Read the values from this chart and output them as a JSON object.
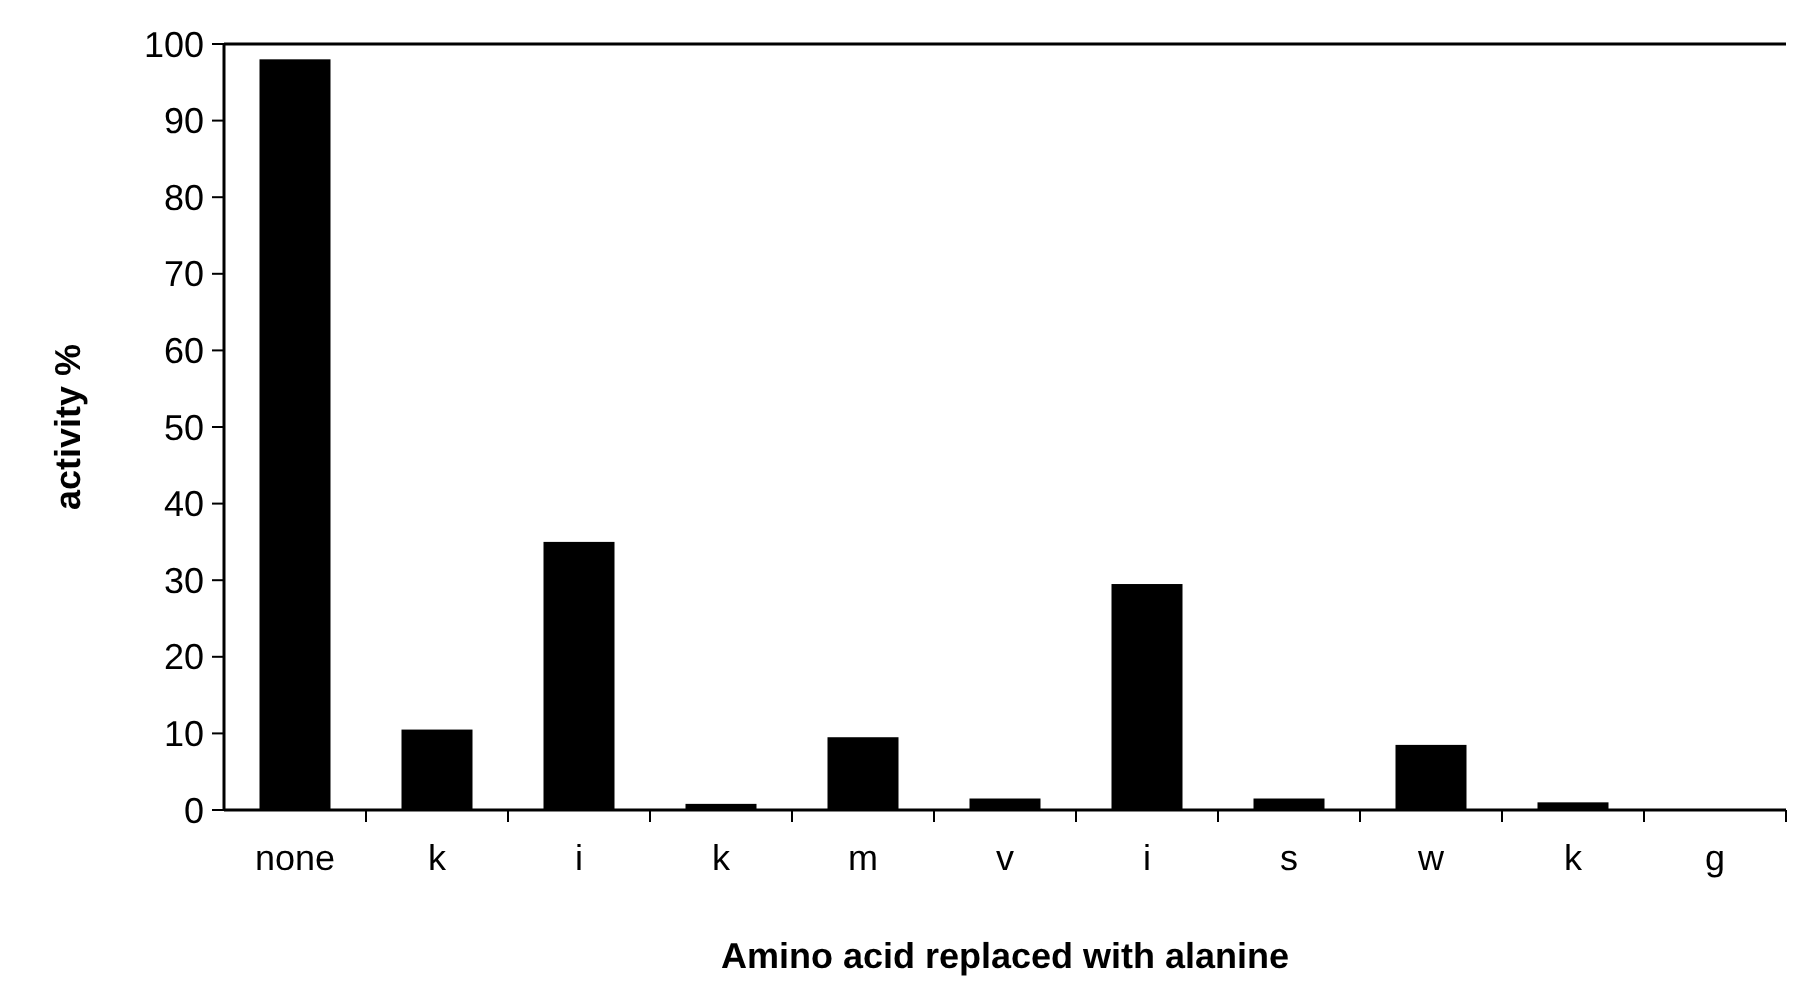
{
  "chart_data": {
    "type": "bar",
    "xlabel": "Amino acid replaced with alanine",
    "ylabel": "activity %",
    "categories": [
      "none",
      "k",
      "i",
      "k",
      "m",
      "v",
      "i",
      "s",
      "w",
      "k",
      "g"
    ],
    "values": [
      98,
      10.5,
      35,
      0.8,
      9.5,
      1.5,
      29.5,
      1.5,
      8.5,
      1,
      0
    ],
    "color": "#000000",
    "ylim": [
      0,
      100
    ],
    "yticks": [
      0,
      10,
      20,
      30,
      40,
      50,
      60,
      70,
      80,
      90,
      100
    ],
    "grid": false
  }
}
